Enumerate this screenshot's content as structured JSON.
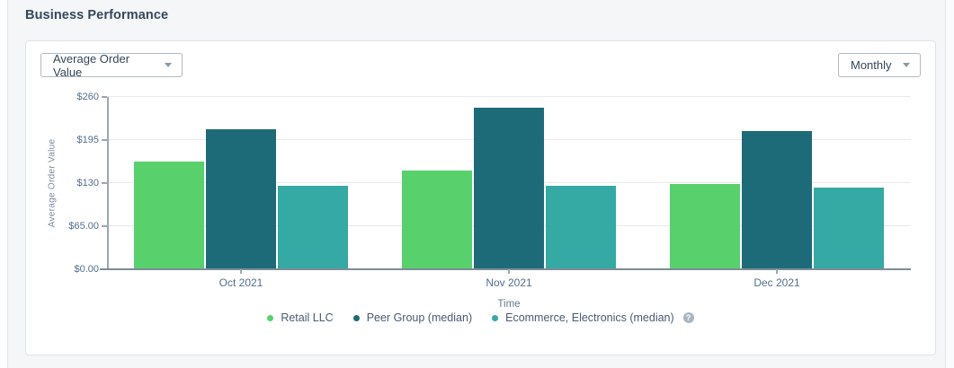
{
  "page": {
    "title": "Business Performance"
  },
  "controls": {
    "metric": {
      "value": "Average Order Value"
    },
    "interval": {
      "value": "Monthly"
    }
  },
  "chart_data": {
    "type": "bar",
    "title": "Business Performance",
    "categories": [
      "Oct 2021",
      "Nov 2021",
      "Dec 2021"
    ],
    "series": [
      {
        "name": "Retail LLC",
        "color": "#58d16c",
        "values": [
          162,
          149,
          129
        ]
      },
      {
        "name": "Peer Group (median)",
        "color": "#1d6b78",
        "values": [
          211,
          244,
          208
        ]
      },
      {
        "name": "Ecommerce, Electronics (median)",
        "color": "#35a9a4",
        "values": [
          126,
          126,
          123
        ]
      }
    ],
    "xlabel": "Time",
    "ylabel": "Average Order Value",
    "ylim": [
      0,
      260
    ],
    "yticks": [
      {
        "value": 0,
        "label": "$0.00"
      },
      {
        "value": 65,
        "label": "$65.00"
      },
      {
        "value": 130,
        "label": "$130"
      },
      {
        "value": 195,
        "label": "$195"
      },
      {
        "value": 260,
        "label": "$260"
      }
    ],
    "grid": true,
    "legend_position": "bottom",
    "help_icon": {
      "glyph": "?",
      "name": "help-icon"
    }
  }
}
